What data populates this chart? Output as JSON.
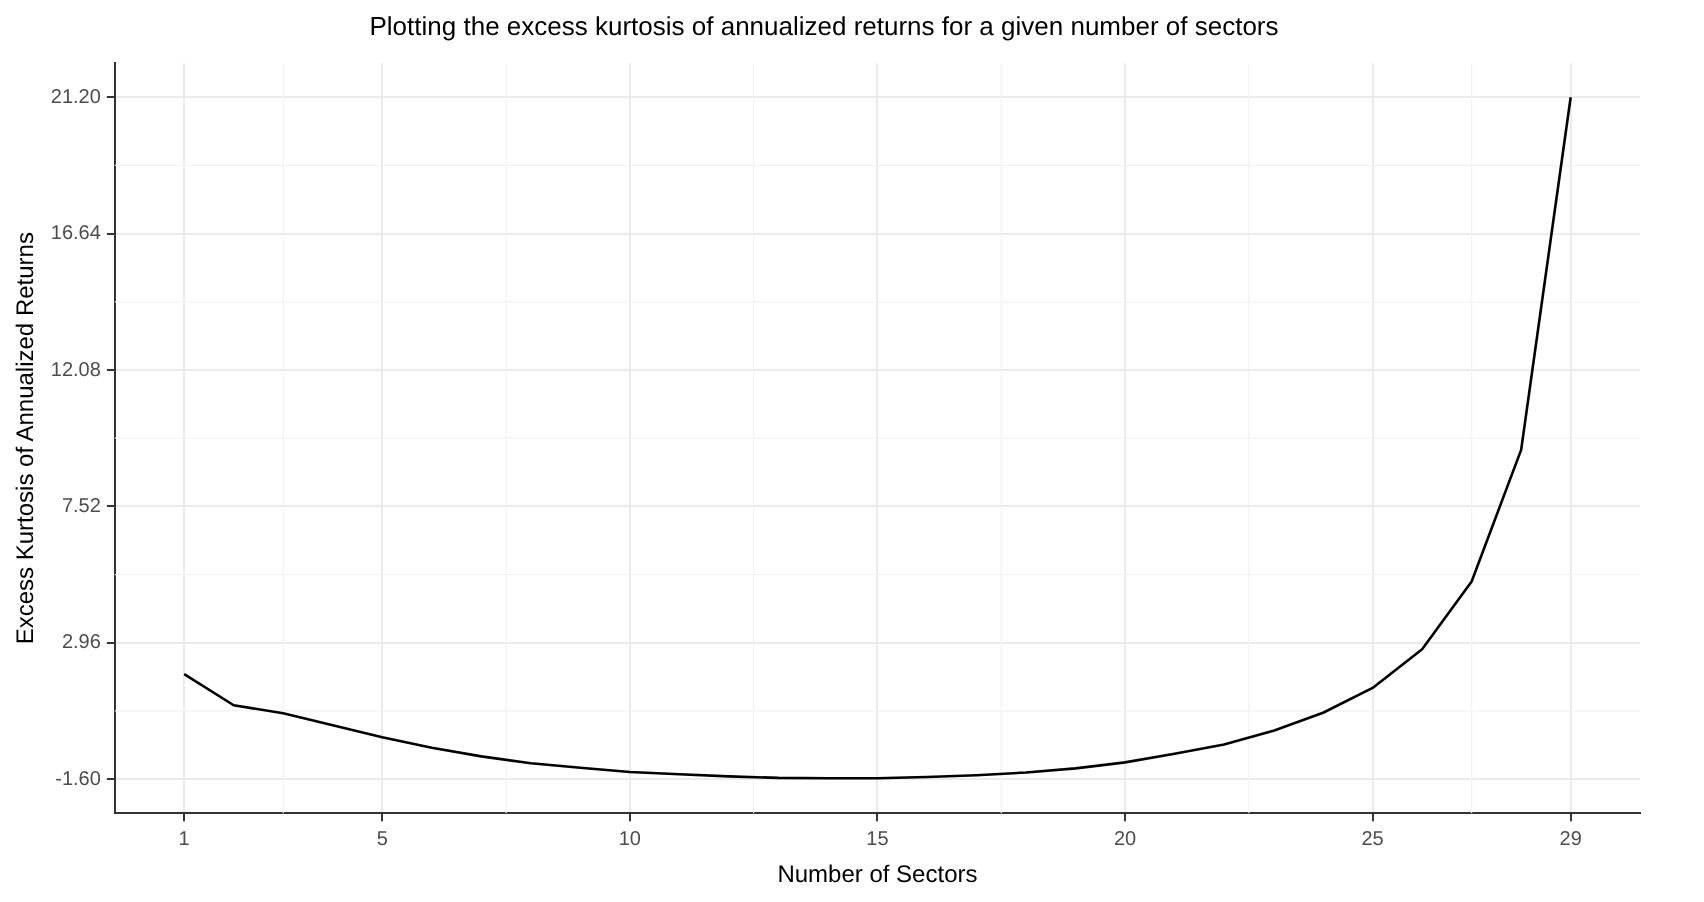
{
  "chart_data": {
    "type": "line",
    "title": "Plotting the excess kurtosis of annualized returns for a given number of sectors",
    "xlabel": "Number of Sectors",
    "ylabel": "Excess Kurtosis of Annualized Returns",
    "x": [
      1,
      2,
      3,
      4,
      5,
      6,
      7,
      8,
      9,
      10,
      11,
      12,
      13,
      14,
      15,
      16,
      17,
      18,
      19,
      20,
      21,
      22,
      23,
      24,
      25,
      26,
      27,
      28,
      29
    ],
    "series": [
      {
        "color": "#000000",
        "values": [
          1.91,
          0.87,
          0.6,
          0.2,
          -0.2,
          -0.55,
          -0.84,
          -1.07,
          -1.22,
          -1.36,
          -1.44,
          -1.51,
          -1.56,
          -1.57,
          -1.57,
          -1.53,
          -1.47,
          -1.38,
          -1.24,
          -1.04,
          -0.75,
          -0.44,
          0.02,
          0.62,
          1.45,
          2.74,
          5.01,
          9.41,
          21.2
        ]
      }
    ],
    "xlim": [
      -0.4,
      30.4
    ],
    "xticks": [
      1,
      5,
      10,
      15,
      20,
      25,
      29
    ],
    "ylim": [
      -2.74,
      22.34
    ],
    "yticks": [
      {
        "value": -1.6,
        "label": "-1.60"
      },
      {
        "value": 2.96,
        "label": "2.96"
      },
      {
        "value": 7.52,
        "label": "7.52"
      },
      {
        "value": 12.08,
        "label": "12.08"
      },
      {
        "value": 16.64,
        "label": "16.64"
      },
      {
        "value": 21.2,
        "label": "21.20"
      }
    ],
    "grid": true,
    "legend": false,
    "marker": "none",
    "line_style": "solid"
  }
}
